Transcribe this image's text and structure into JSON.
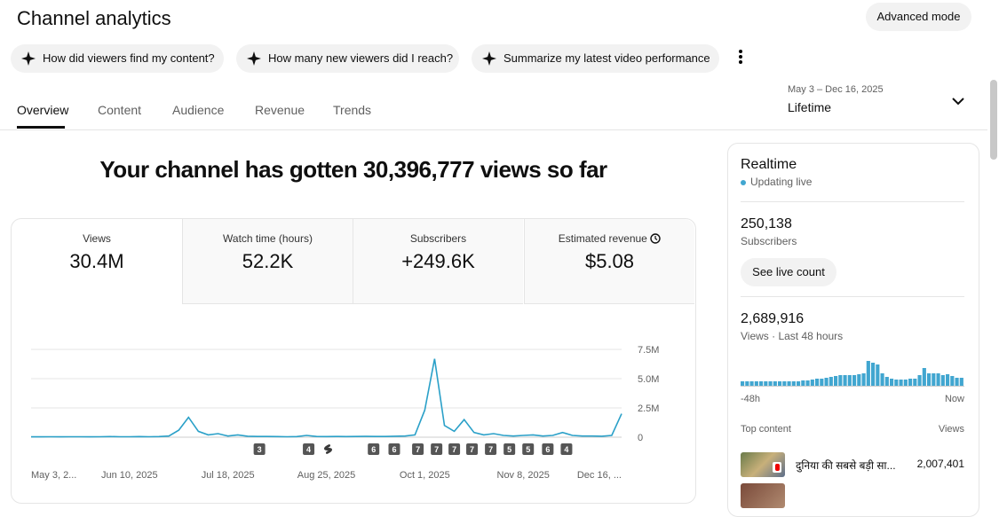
{
  "header": {
    "title": "Channel analytics",
    "advanced_mode": "Advanced mode"
  },
  "suggestions": [
    "How did viewers find my content?",
    "How many new viewers did I reach?",
    "Summarize my latest video performance"
  ],
  "tabs": [
    "Overview",
    "Content",
    "Audience",
    "Revenue",
    "Trends"
  ],
  "date_range": {
    "range": "May 3 – Dec 16, 2025",
    "period": "Lifetime"
  },
  "headline": "Your channel has gotten 30,396,777 views so far",
  "metrics": [
    {
      "label": "Views",
      "value": "30.4M"
    },
    {
      "label": "Watch time (hours)",
      "value": "52.2K"
    },
    {
      "label": "Subscribers",
      "value": "+249.6K"
    },
    {
      "label": "Estimated revenue",
      "value": "$5.08"
    }
  ],
  "realtime": {
    "title": "Realtime",
    "status": "Updating live",
    "subscribers": "250,138",
    "subscribers_label": "Subscribers",
    "live_count_button": "See live count",
    "views": "2,689,916",
    "views_label": "Views · Last 48 hours",
    "top_content": "Top content",
    "views_header": "Views",
    "items": [
      {
        "title": "दुनिया की सबसे बड़ी सा...",
        "views": "2,007,401"
      }
    ]
  },
  "chart_data": [
    {
      "type": "line",
      "color": "#2aa0c8",
      "categories": [
        "May 3, 2...",
        null,
        null,
        null,
        null,
        null,
        null,
        null,
        null,
        null,
        "Jun 10, 2025",
        null,
        null,
        null,
        null,
        null,
        null,
        null,
        null,
        null,
        "Jul 18, 2025",
        null,
        null,
        null,
        null,
        null,
        null,
        null,
        null,
        null,
        "Aug 25, 2025",
        null,
        null,
        null,
        null,
        null,
        null,
        null,
        null,
        null,
        "Oct 1, 2025",
        null,
        null,
        null,
        null,
        null,
        null,
        null,
        null,
        null,
        "Nov 8, 2025",
        null,
        null,
        null,
        null,
        null,
        null,
        null,
        null,
        null,
        "Dec 16, ..."
      ],
      "values": [
        30000,
        30000,
        40000,
        30000,
        40000,
        40000,
        30000,
        40000,
        50000,
        40000,
        40000,
        50000,
        40000,
        50000,
        100000,
        600000,
        1700000,
        500000,
        200000,
        300000,
        100000,
        200000,
        80000,
        60000,
        60000,
        50000,
        40000,
        50000,
        150000,
        60000,
        50000,
        60000,
        50000,
        60000,
        70000,
        60000,
        60000,
        80000,
        100000,
        200000,
        2300000,
        6700000,
        1000000,
        500000,
        1500000,
        400000,
        200000,
        300000,
        150000,
        100000,
        150000,
        200000,
        100000,
        150000,
        400000,
        150000,
        100000,
        100000,
        80000,
        150000,
        2000000
      ],
      "ylim": [
        0,
        7500000
      ],
      "yticks": [
        0,
        {
          "value": 2500000,
          "label": "2.5M"
        },
        {
          "value": 5000000,
          "label": "5.0M"
        },
        {
          "value": 7500000,
          "label": "7.5M"
        }
      ],
      "grid": true,
      "markers": [
        {
          "label": "3",
          "x": 23.2
        },
        {
          "label": "4",
          "x": 28.2
        },
        {
          "label": "6",
          "x": 34.8
        },
        {
          "label": "6",
          "x": 36.9
        },
        {
          "label": "7",
          "x": 39.3
        },
        {
          "label": "7",
          "x": 41.2
        },
        {
          "label": "7",
          "x": 43
        },
        {
          "label": "7",
          "x": 44.8
        },
        {
          "label": "7",
          "x": 46.7
        },
        {
          "label": "5",
          "x": 48.6
        },
        {
          "label": "5",
          "x": 50.5
        },
        {
          "label": "6",
          "x": 52.5
        },
        {
          "label": "4",
          "x": 54.4
        }
      ]
    },
    {
      "type": "bar",
      "color": "#41a6d0",
      "categories": [
        "-48h",
        null,
        null,
        null,
        null,
        null,
        null,
        null,
        null,
        null,
        null,
        null,
        null,
        null,
        null,
        null,
        null,
        null,
        null,
        null,
        null,
        null,
        null,
        null,
        null,
        null,
        null,
        null,
        null,
        null,
        null,
        null,
        null,
        null,
        null,
        null,
        null,
        null,
        null,
        null,
        null,
        null,
        null,
        null,
        null,
        null,
        null,
        "Now"
      ],
      "values": [
        25000,
        25000,
        25000,
        25000,
        25000,
        25000,
        25000,
        25000,
        25000,
        25000,
        25000,
        25000,
        25000,
        30000,
        30000,
        35000,
        40000,
        40000,
        45000,
        50000,
        55000,
        60000,
        60000,
        60000,
        60000,
        65000,
        70000,
        140000,
        130000,
        120000,
        70000,
        50000,
        40000,
        35000,
        35000,
        35000,
        40000,
        40000,
        60000,
        100000,
        70000,
        70000,
        70000,
        60000,
        65000,
        55000,
        45000,
        45000
      ]
    }
  ]
}
